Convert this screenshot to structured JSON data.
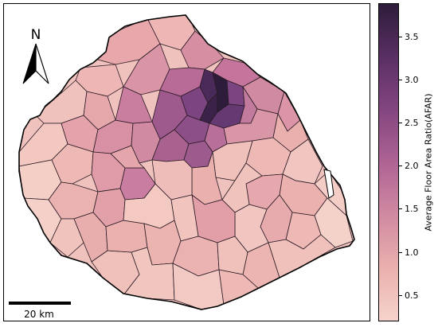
{
  "map": {
    "north_label": "N",
    "scale_bar_label": "20 km"
  },
  "colorbar": {
    "label": "Average Floor Area Ratio(AFAR)",
    "min": 0.2,
    "max": 3.9,
    "ticks": [
      "0.5",
      "1.0",
      "1.5",
      "2.0",
      "2.5",
      "3.0",
      "3.5"
    ],
    "colors": [
      "#f6d3cc",
      "#eab0ad",
      "#d08aa1",
      "#ae6394",
      "#83457f",
      "#5a2f63",
      "#2d1c3a"
    ]
  }
}
